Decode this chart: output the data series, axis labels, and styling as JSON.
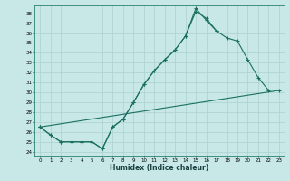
{
  "xlabel": "Humidex (Indice chaleur)",
  "bg_color": "#c8e8e8",
  "line_color": "#1a7060",
  "grid_color": "#b0d8d8",
  "xlim": [
    -0.5,
    23.5
  ],
  "ylim": [
    23.6,
    38.8
  ],
  "yticks": [
    24,
    25,
    26,
    27,
    28,
    29,
    30,
    31,
    32,
    33,
    34,
    35,
    36,
    37,
    38
  ],
  "xticks": [
    0,
    1,
    2,
    3,
    4,
    5,
    6,
    7,
    8,
    9,
    10,
    11,
    12,
    13,
    14,
    15,
    16,
    17,
    18,
    19,
    20,
    21,
    22,
    23
  ],
  "line1_x": [
    0,
    1,
    2,
    3,
    4,
    5,
    6,
    7,
    8,
    9,
    10,
    11,
    12,
    13,
    14,
    15,
    16,
    17,
    18,
    19,
    20,
    21,
    22
  ],
  "line1_y": [
    26.5,
    25.7,
    25.0,
    25.0,
    25.0,
    25.0,
    24.3,
    26.5,
    27.3,
    29.0,
    30.8,
    32.2,
    33.3,
    34.3,
    35.7,
    38.2,
    37.5,
    36.2,
    35.5,
    35.2,
    33.3,
    31.5,
    30.2
  ],
  "line2_x": [
    0,
    1,
    2,
    3,
    4,
    5,
    6,
    7,
    8,
    9,
    10,
    11,
    12,
    13,
    14,
    15,
    16,
    17
  ],
  "line2_y": [
    26.5,
    25.7,
    25.0,
    25.0,
    25.0,
    25.0,
    24.3,
    26.5,
    27.3,
    29.0,
    30.8,
    32.2,
    33.3,
    34.3,
    35.7,
    38.5,
    37.3,
    36.2
  ],
  "line3_x": [
    0,
    23
  ],
  "line3_y": [
    26.5,
    30.2
  ]
}
